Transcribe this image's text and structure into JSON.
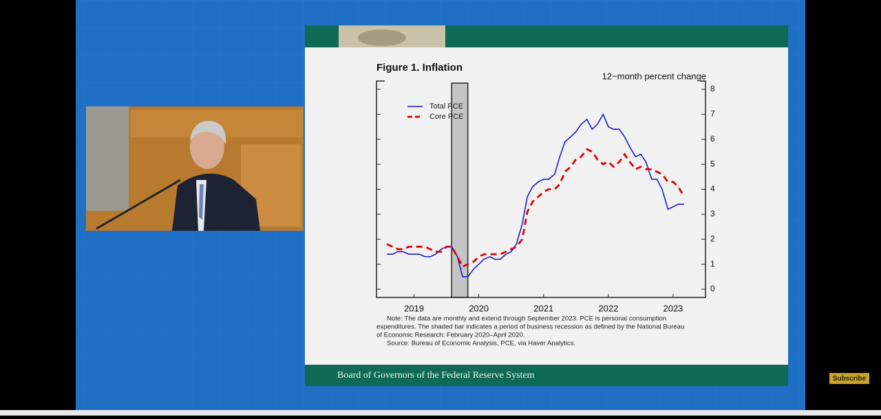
{
  "chart_data": {
    "type": "line",
    "title": "Figure 1. Inflation",
    "y_axis_label": "12−month percent change",
    "x": [
      2019.08,
      2019.17,
      2019.25,
      2019.33,
      2019.42,
      2019.5,
      2019.58,
      2019.67,
      2019.75,
      2019.83,
      2019.92,
      2020.0,
      2020.08,
      2020.17,
      2020.25,
      2020.33,
      2020.42,
      2020.5,
      2020.58,
      2020.67,
      2020.75,
      2020.83,
      2020.92,
      2021.0,
      2021.08,
      2021.17,
      2021.25,
      2021.33,
      2021.42,
      2021.5,
      2021.58,
      2021.67,
      2021.75,
      2021.83,
      2021.92,
      2022.0,
      2022.08,
      2022.17,
      2022.25,
      2022.33,
      2022.42,
      2022.5,
      2022.58,
      2022.67,
      2022.75,
      2022.83,
      2022.92,
      2023.0,
      2023.08,
      2023.17,
      2023.25,
      2023.33,
      2023.42,
      2023.5,
      2023.58,
      2023.67
    ],
    "series": [
      {
        "name": "Total PCE",
        "color": "#1a1acc",
        "dash": false,
        "values": [
          1.4,
          1.4,
          1.5,
          1.5,
          1.4,
          1.4,
          1.4,
          1.3,
          1.3,
          1.4,
          1.6,
          1.7,
          1.7,
          1.3,
          0.5,
          0.5,
          0.8,
          1.0,
          1.2,
          1.3,
          1.2,
          1.2,
          1.4,
          1.5,
          1.8,
          2.6,
          3.7,
          4.1,
          4.3,
          4.4,
          4.4,
          4.6,
          5.3,
          5.9,
          6.1,
          6.3,
          6.6,
          6.8,
          6.4,
          6.6,
          7.0,
          6.5,
          6.4,
          6.4,
          6.1,
          5.7,
          5.3,
          5.4,
          5.1,
          4.4,
          4.4,
          4.0,
          3.2,
          3.3,
          3.4,
          3.4
        ]
      },
      {
        "name": "Core PCE",
        "color": "#dd0000",
        "dash": true,
        "values": [
          1.8,
          1.7,
          1.6,
          1.6,
          1.7,
          1.7,
          1.7,
          1.7,
          1.6,
          1.5,
          1.5,
          1.7,
          1.7,
          1.3,
          0.9,
          1.0,
          1.1,
          1.3,
          1.4,
          1.4,
          1.4,
          1.4,
          1.5,
          1.6,
          1.7,
          2.0,
          3.1,
          3.5,
          3.7,
          3.9,
          4.0,
          4.0,
          4.2,
          4.7,
          4.9,
          5.2,
          5.3,
          5.6,
          5.5,
          5.2,
          5.0,
          5.1,
          4.9,
          5.1,
          5.4,
          5.1,
          4.8,
          4.9,
          4.8,
          4.8,
          4.7,
          4.6,
          4.3,
          4.3,
          4.1,
          3.7
        ]
      }
    ],
    "recession": {
      "start": 2020.08,
      "end": 2020.33
    },
    "xlim": [
      2018.92,
      2024.0
    ],
    "xticks": [
      {
        "value": 2019.5,
        "label": "2019"
      },
      {
        "value": 2020.5,
        "label": "2020"
      },
      {
        "value": 2021.5,
        "label": "2021"
      },
      {
        "value": 2022.5,
        "label": "2022"
      },
      {
        "value": 2023.5,
        "label": "2023"
      }
    ],
    "ylim": [
      0,
      8
    ],
    "yticks": [
      0,
      1,
      2,
      3,
      4,
      5,
      6,
      7,
      8
    ],
    "legend": "upper left",
    "notes": [
      "Note: The data are monthly and extend through September 2023. PCE is personal consumption",
      "expenditures. The shaded bar indicates a period of business recession as defined by the National Bureau",
      "of Economic Research: February 2020–April 2020.",
      "Source: Bureau of Economic Analysis, PCE, via Haver Analytics."
    ]
  },
  "slide_footer": "Board of Governors of the Federal Reserve System",
  "subscribe_button": "Subscribe"
}
